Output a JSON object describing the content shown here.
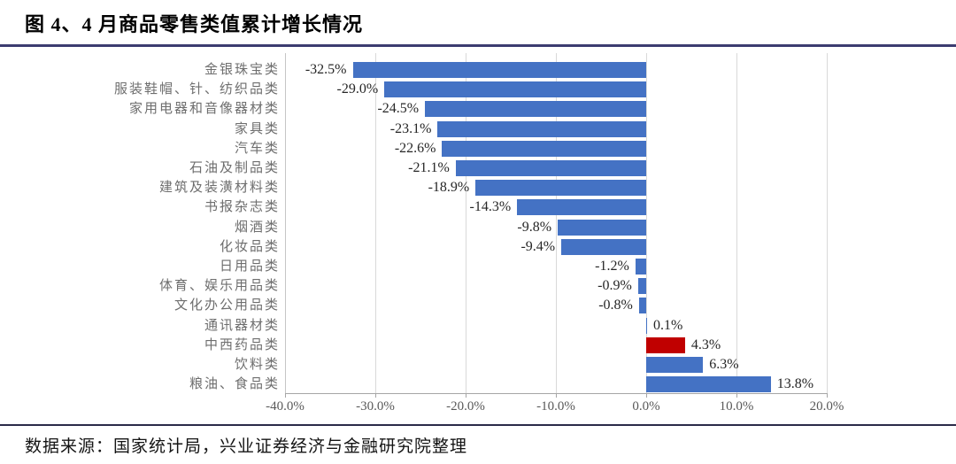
{
  "header": {
    "title": "图 4、4 月商品零售类值累计增长情况"
  },
  "footer": {
    "source_note": "数据来源：国家统计局，兴业证券经济与金融研究院整理"
  },
  "colors": {
    "bar_blue": "#4472c4",
    "bar_red": "#c00000",
    "title_rule": "#3c3c70",
    "footer_rule": "#2b2b49",
    "gridline": "#d9d9d9",
    "axis": "#a6a6a6"
  },
  "chart_data": {
    "type": "bar",
    "orientation": "horizontal",
    "title": "4 月商品零售类值累计增长情况",
    "xlabel": "",
    "ylabel": "",
    "xlim": [
      -40,
      20
    ],
    "grid": true,
    "legend": "none",
    "categories": [
      "金银珠宝类",
      "服装鞋帽、针、纺织品类",
      "家用电器和音像器材类",
      "家具类",
      "汽车类",
      "石油及制品类",
      "建筑及装潢材料类",
      "书报杂志类",
      "烟酒类",
      "化妆品类",
      "日用品类",
      "体育、娱乐用品类",
      "文化办公用品类",
      "通讯器材类",
      "中西药品类",
      "饮料类",
      "粮油、食品类"
    ],
    "values": [
      -32.5,
      -29.0,
      -24.5,
      -23.1,
      -22.6,
      -21.1,
      -18.9,
      -14.3,
      -9.8,
      -9.4,
      -1.2,
      -0.9,
      -0.8,
      0.1,
      4.3,
      6.3,
      13.8
    ],
    "value_labels": [
      "-32.5%",
      "-29.0%",
      "-24.5%",
      "-23.1%",
      "-22.6%",
      "-21.1%",
      "-18.9%",
      "-14.3%",
      "-9.8%",
      "-9.4%",
      "-1.2%",
      "-0.9%",
      "-0.8%",
      "0.1%",
      "4.3%",
      "6.3%",
      "13.8%"
    ],
    "highlight_category": "中西药品类",
    "x_ticks": [
      -40,
      -30,
      -20,
      -10,
      0,
      10,
      20
    ],
    "x_tick_labels": [
      "-40.0%",
      "-30.0%",
      "-20.0%",
      "-10.0%",
      "0.0%",
      "10.0%",
      "20.0%"
    ]
  }
}
